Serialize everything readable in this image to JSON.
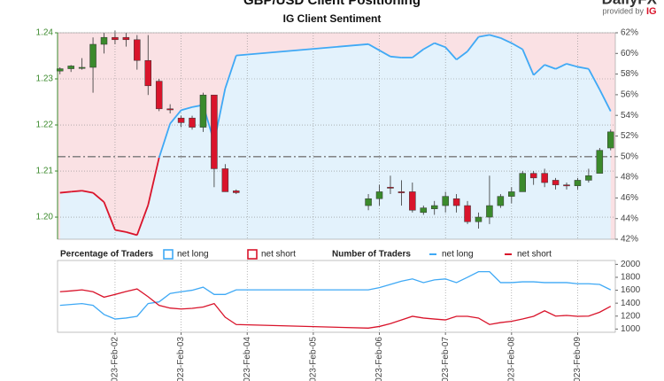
{
  "chart_data": [
    {
      "type": "candlestick",
      "title": "GBP/USD Client Positioning",
      "subtitle": "IG Client Sentiment",
      "x": [
        1.1667,
        1.3333,
        1.5,
        1.6667,
        1.8333,
        2,
        2.1667,
        2.3333,
        2.5,
        2.6667,
        2.8333,
        3,
        3.1667,
        3.3333,
        3.5,
        3.6667,
        3.8333,
        5.8333,
        6,
        6.1667,
        6.3333,
        6.5,
        6.6667,
        6.8333,
        7,
        7.1667,
        7.3333,
        7.5,
        7.6667,
        7.8333,
        8,
        8.1667,
        8.3333,
        8.5,
        8.6667,
        8.8333,
        9,
        9.1667,
        9.3333,
        9.5
      ],
      "open": [
        1.2317,
        1.2322,
        1.2325,
        1.2325,
        1.2375,
        1.239,
        1.239,
        1.2385,
        1.234,
        1.2295,
        1.2235,
        1.2215,
        1.2215,
        1.2195,
        1.2265,
        1.2105,
        1.2057,
        1.2025,
        1.204,
        1.2065,
        1.2055,
        1.2055,
        1.201,
        1.2018,
        1.2025,
        1.204,
        1.2025,
        1.199,
        1.2,
        1.2025,
        1.2045,
        1.2055,
        1.2095,
        1.2095,
        1.208,
        1.207,
        1.2068,
        1.208,
        1.2095,
        1.215
      ],
      "high": [
        1.2325,
        1.233,
        1.2345,
        1.239,
        1.24,
        1.2405,
        1.24,
        1.2395,
        1.2395,
        1.23,
        1.2245,
        1.222,
        1.222,
        1.227,
        1.2265,
        1.2115,
        1.206,
        1.205,
        1.207,
        1.209,
        1.208,
        1.2075,
        1.2025,
        1.2035,
        1.2055,
        1.205,
        1.2035,
        1.201,
        1.209,
        1.205,
        1.2065,
        1.21,
        1.21,
        1.2105,
        1.2085,
        1.2075,
        1.2085,
        1.2105,
        1.215,
        1.219
      ],
      "low": [
        1.231,
        1.2315,
        1.232,
        1.227,
        1.2355,
        1.2375,
        1.237,
        1.232,
        1.2265,
        1.223,
        1.2225,
        1.2195,
        1.219,
        1.2185,
        1.2065,
        1.2055,
        1.205,
        1.2015,
        1.2025,
        1.205,
        1.2025,
        1.201,
        1.2005,
        1.2005,
        1.201,
        1.201,
        1.1985,
        1.1975,
        1.1985,
        1.202,
        1.203,
        1.2055,
        1.207,
        1.2065,
        1.206,
        1.206,
        1.206,
        1.2075,
        1.2095,
        1.2145
      ],
      "close": [
        1.2322,
        1.2328,
        1.2325,
        1.2375,
        1.239,
        1.2385,
        1.2385,
        1.234,
        1.2285,
        1.2235,
        1.2233,
        1.2205,
        1.2195,
        1.2265,
        1.2105,
        1.2055,
        1.2053,
        1.204,
        1.2055,
        1.2063,
        1.2053,
        1.2015,
        1.202,
        1.2025,
        1.2045,
        1.2025,
        1.199,
        1.2,
        1.2025,
        1.2045,
        1.2055,
        1.2095,
        1.2085,
        1.2075,
        1.207,
        1.2068,
        1.208,
        1.209,
        1.2145,
        1.2185
      ],
      "up_color": "#3b8a2c",
      "down_color": "#d9142b",
      "sentiment": {
        "axis": "y2",
        "values": [
          46.5,
          46.6,
          46.7,
          46.5,
          45.6,
          42.9,
          42.7,
          42.4,
          45.3,
          49.9,
          53.2,
          54.5,
          54.8,
          55,
          51.4,
          56.6,
          59.8,
          60.9,
          60.3,
          59.7,
          59.6,
          59.6,
          60.4,
          61,
          60.6,
          59.4,
          60.2,
          61.6,
          61.8,
          61.5,
          61,
          60.4,
          57.9,
          58.9,
          58.5,
          59,
          58.7,
          58.5,
          56.5,
          54.4
        ]
      },
      "reference_line": 50,
      "legend": {
        "title": "Percentage of Traders",
        "items": [
          {
            "name": "net long",
            "color": "#3fa9f5"
          },
          {
            "name": "net short",
            "color": "#d9142b"
          }
        ]
      },
      "xlim": [
        1.13,
        9.57
      ],
      "xticks": [
        2,
        3,
        4,
        5,
        6,
        7,
        8,
        9
      ],
      "ylim": [
        1.1952,
        1.24
      ],
      "yticks": [
        {
          "value": 1.2,
          "label": "1.20"
        },
        1.21,
        1.22,
        1.23,
        1.24
      ],
      "y2lim": [
        42,
        62
      ],
      "y2ticks": [
        {
          "value": 42,
          "label": "42%"
        },
        {
          "value": 44,
          "label": "44%"
        },
        {
          "value": 46,
          "label": "46%"
        },
        {
          "value": 48,
          "label": "48%"
        },
        {
          "value": 50,
          "label": "50%"
        },
        {
          "value": 52,
          "label": "52%"
        },
        {
          "value": 54,
          "label": "54%"
        },
        {
          "value": 56,
          "label": "56%"
        },
        {
          "value": 58,
          "label": "58%"
        },
        {
          "value": 60,
          "label": "60%"
        },
        {
          "value": 62,
          "label": "62%"
        }
      ],
      "grid": true
    },
    {
      "type": "line",
      "legend_title": "Number of Traders",
      "x": [
        1.1667,
        1.3333,
        1.5,
        1.6667,
        1.8333,
        2,
        2.1667,
        2.3333,
        2.5,
        2.6667,
        2.8333,
        3,
        3.1667,
        3.3333,
        3.5,
        3.6667,
        3.8333,
        5.8333,
        6,
        6.1667,
        6.3333,
        6.5,
        6.6667,
        6.8333,
        7,
        7.1667,
        7.3333,
        7.5,
        7.6667,
        7.8333,
        8,
        8.1667,
        8.3333,
        8.5,
        8.6667,
        8.8333,
        9,
        9.1667,
        9.3333,
        9.5
      ],
      "series": [
        {
          "name": "net long",
          "color": "#3fa9f5",
          "values": [
            1366,
            1380,
            1394,
            1366,
            1225,
            1155,
            1170,
            1197,
            1394,
            1420,
            1549,
            1577,
            1600,
            1648,
            1535,
            1535,
            1606,
            1606,
            1640,
            1690,
            1740,
            1775,
            1718,
            1760,
            1775,
            1718,
            1800,
            1887,
            1887,
            1718,
            1718,
            1730,
            1730,
            1718,
            1718,
            1718,
            1700,
            1700,
            1690,
            1606
          ]
        },
        {
          "name": "net short",
          "color": "#d9142b",
          "values": [
            1577,
            1590,
            1606,
            1577,
            1493,
            1535,
            1580,
            1620,
            1500,
            1366,
            1324,
            1310,
            1320,
            1340,
            1394,
            1183,
            1070,
            1014,
            1040,
            1084,
            1140,
            1197,
            1170,
            1155,
            1141,
            1197,
            1197,
            1170,
            1070,
            1100,
            1120,
            1155,
            1197,
            1282,
            1200,
            1210,
            1197,
            1200,
            1260,
            1352
          ]
        }
      ],
      "xlim": [
        1.13,
        9.57
      ],
      "xticks": [
        {
          "value": 2,
          "label": "2023-Feb-02"
        },
        {
          "value": 3,
          "label": "2023-Feb-03"
        },
        {
          "value": 4,
          "label": "2023-Feb-04"
        },
        {
          "value": 5,
          "label": "2023-Feb-05"
        },
        {
          "value": 6,
          "label": "2023-Feb-06"
        },
        {
          "value": 7,
          "label": "2023-Feb-07"
        },
        {
          "value": 8,
          "label": "2023-Feb-08"
        },
        {
          "value": 9,
          "label": "2023-Feb-09"
        }
      ],
      "ylim": [
        950,
        2060
      ],
      "yticks": [
        1000,
        1200,
        1400,
        1600,
        1800,
        2000
      ],
      "grid": true
    }
  ],
  "branding": {
    "logo": "DailyFX",
    "provided_by": "provided by",
    "brand": "IG"
  }
}
